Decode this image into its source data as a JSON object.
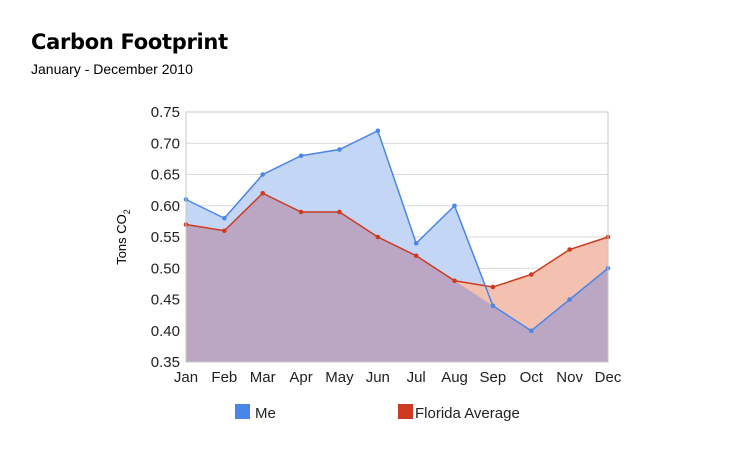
{
  "header": {
    "title": "Carbon Footprint",
    "subtitle": "January - December 2010"
  },
  "chart_data": {
    "type": "area",
    "title": "Carbon Footprint",
    "subtitle": "January - December 2010",
    "xlabel": "",
    "ylabel": "Tons CO",
    "ylabel_subscript": "2",
    "categories": [
      "Jan",
      "Feb",
      "Mar",
      "Apr",
      "May",
      "Jun",
      "Jul",
      "Aug",
      "Sep",
      "Oct",
      "Nov",
      "Dec"
    ],
    "ylim": [
      0.35,
      0.75
    ],
    "yticks": [
      "0.35",
      "0.40",
      "0.45",
      "0.50",
      "0.55",
      "0.60",
      "0.65",
      "0.70",
      "0.75"
    ],
    "grid": true,
    "legend_position": "bottom",
    "series": [
      {
        "name": "Me",
        "color": "#4a86e8",
        "fill": "#c4d6f6",
        "values": [
          0.61,
          0.58,
          0.65,
          0.68,
          0.69,
          0.72,
          0.54,
          0.6,
          0.44,
          0.4,
          0.45,
          0.5
        ]
      },
      {
        "name": "Florida Average",
        "color": "#cc3a1f",
        "fill": "#f4c0b0",
        "values": [
          0.57,
          0.56,
          0.62,
          0.59,
          0.59,
          0.55,
          0.52,
          0.48,
          0.47,
          0.49,
          0.53,
          0.55
        ]
      }
    ],
    "overlap_fill": "#bba7c3"
  }
}
